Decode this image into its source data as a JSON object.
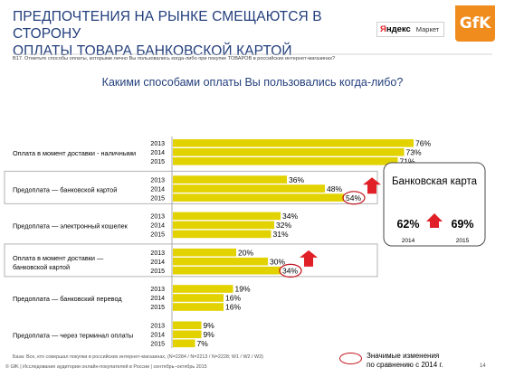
{
  "header": {
    "title_line1": "ПРЕДПОЧТЕНИЯ НА РЫНКЕ СМЕЩАЮТСЯ В СТОРОНУ",
    "title_line2": "ОПЛАТЫ ТОВАРА БАНКОВСКОЙ КАРТОЙ",
    "yandex_logo_first": "Я",
    "yandex_logo_rest": "ндекс",
    "market_logo": "Маркет",
    "gfk_logo": "GfK"
  },
  "question": "B17. Отметьте способы оплаты, которыми лично Вы пользовались когда-либо при покупке ТОВАРОВ в российских интернет-магазинах?",
  "chart_data": {
    "type": "bar",
    "orientation": "horizontal",
    "title": "Какими способами оплаты Вы пользовались когда-либо?",
    "years": [
      "2013",
      "2014",
      "2015"
    ],
    "bar_color": "#e2d200",
    "groups": [
      {
        "label_lines": [
          "Оплата в момент доставки - наличными"
        ],
        "values": [
          76,
          73,
          71
        ],
        "highlighted": false,
        "arrow": false
      },
      {
        "label_lines": [
          "Предоплата — банковской картой"
        ],
        "values": [
          36,
          48,
          54
        ],
        "highlighted": true,
        "arrow": true
      },
      {
        "label_lines": [
          "Предоплата — электронный кошелек"
        ],
        "values": [
          34,
          32,
          31
        ],
        "highlighted": false,
        "arrow": false
      },
      {
        "label_lines": [
          "Оплата в момент доставки —",
          "банковской картой"
        ],
        "values": [
          20,
          30,
          34
        ],
        "highlighted": true,
        "arrow": true
      },
      {
        "label_lines": [
          "Предоплата — банковский перевод"
        ],
        "values": [
          19,
          16,
          16
        ],
        "highlighted": false,
        "arrow": false
      },
      {
        "label_lines": [
          "Предоплата — через терминал оплаты"
        ],
        "values": [
          9,
          9,
          7
        ],
        "highlighted": false,
        "arrow": false
      }
    ],
    "value_suffix": "%"
  },
  "callout": {
    "title": "Банковская карта",
    "value_2014": "62%",
    "value_2015": "69%",
    "year_2014": "2014",
    "year_2015": "2015"
  },
  "legend": {
    "text_line1": "Значимые изменения",
    "text_line2": "по сравнению с 2014 г."
  },
  "footer": {
    "base": "База: Все, кто совершал покупки в российских интернет-магазинах, (N=2284 / N=2213 / N=2228; W1 / W2 / W3)",
    "credit": "© GfK | Исследование аудитории онлайн-покупателей в России | сентябрь–октябрь 2015",
    "page_number": "14"
  },
  "colors": {
    "title_blue": "#233f7c",
    "bar_yellow": "#e2d200",
    "highlight_red": "#c0121c",
    "arrow_red": "#e01f27",
    "gfk_orange": "#f08c1e"
  }
}
